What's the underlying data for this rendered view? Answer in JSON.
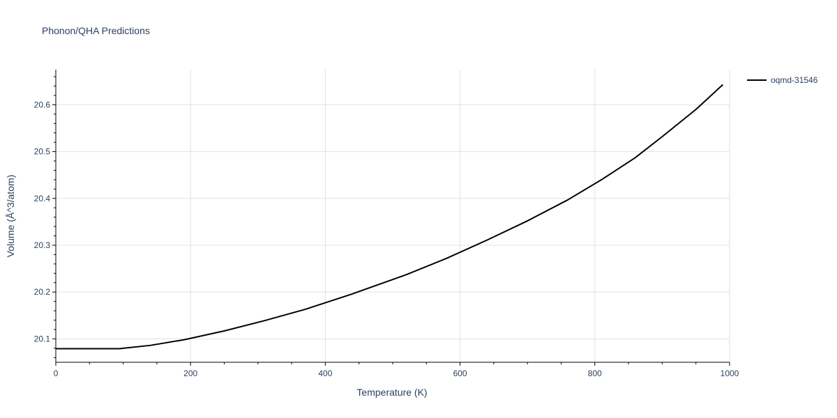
{
  "chart_data": {
    "type": "line",
    "title": "Phonon/QHA Predictions",
    "xlabel": "Temperature (K)",
    "ylabel": "Volume (Å^3/atom)",
    "xlim": [
      0,
      1000
    ],
    "ylim": [
      20.05,
      20.675
    ],
    "xticks": [
      0,
      200,
      400,
      600,
      800,
      1000
    ],
    "yticks": [
      20.1,
      20.2,
      20.3,
      20.4,
      20.5,
      20.6
    ],
    "grid": true,
    "legend_position": "top-right",
    "series": [
      {
        "name": "oqmd-31546",
        "color": "#000000",
        "x": [
          0,
          50,
          95,
          100,
          140,
          190,
          250,
          310,
          370,
          440,
          520,
          580,
          640,
          700,
          760,
          810,
          860,
          900,
          950,
          990
        ],
        "y": [
          20.079,
          20.079,
          20.079,
          20.08,
          20.086,
          20.098,
          20.117,
          20.139,
          20.163,
          20.196,
          20.237,
          20.272,
          20.311,
          20.352,
          20.397,
          20.44,
          20.487,
          20.532,
          20.59,
          20.643
        ]
      }
    ]
  }
}
